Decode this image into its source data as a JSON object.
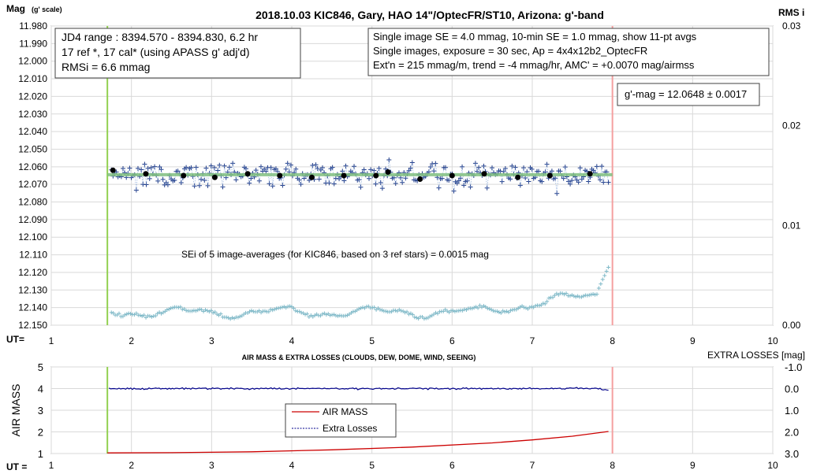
{
  "chart_data": [
    {
      "type": "scatter",
      "title": "2018.10.03  KIC846,  Gary, HAO  14\"/OptecFR/ST10,  Arizona:  g'-band",
      "ylabel": "Mag",
      "ylabel_suffix": "(g' scale)",
      "y2label": "RMS i",
      "xlabel": "UT=",
      "xlim": [
        1,
        10
      ],
      "ylim": [
        11.98,
        12.15
      ],
      "y_inverted": true,
      "y2lim": [
        0.0,
        0.03
      ],
      "x_ticks": [
        "1",
        "2",
        "3",
        "4",
        "5",
        "6",
        "7",
        "8",
        "9",
        "10"
      ],
      "y_ticks": [
        "11.980",
        "11.990",
        "12.000",
        "12.010",
        "12.020",
        "12.030",
        "12.040",
        "12.050",
        "12.060",
        "12.070",
        "12.080",
        "12.090",
        "12.100",
        "12.110",
        "12.120",
        "12.130",
        "12.140",
        "12.150"
      ],
      "y2_ticks": [
        "0.03",
        "0.02",
        "0.01",
        "0.00"
      ],
      "grid": true,
      "vlines": [
        {
          "x": 1.7,
          "color": "#92d050"
        },
        {
          "x": 8.0,
          "color": "#f4a0a0"
        }
      ],
      "annotations": {
        "box1": [
          "JD4 range : 8394.570 - 8394.830, 6.2  hr",
          "17 ref *, 17 cal* (using APASS g' adj'd)",
          "RMSi = 6.6 mmag"
        ],
        "box2": [
          "Single image SE = 4.0 mmag, 10-min SE = 1.0 mmag, show  11-pt avgs",
          "Single images, exposure = 30 sec, Ap = 4x4x12b2_OptecFR",
          "Ext'n = 215 mmag/m, trend =  -4 mmag/hr, AMC' = +0.0070 mag/airmss"
        ],
        "box3": "g'-mag = 12.0648 ± 0.0017",
        "sei_text": "SEi of 5 image-averages (for KIC846, based on 3 ref stars) = 0.0015  mag"
      },
      "fit_line": {
        "x": [
          1.7,
          8.0
        ],
        "y": [
          12.0645,
          12.0645
        ],
        "color": "#7fbf7f"
      },
      "series": [
        {
          "name": "11-pt avgs",
          "color": "#000000",
          "x": [
            1.77,
            2.18,
            2.65,
            3.04,
            3.45,
            3.85,
            4.25,
            4.65,
            5.05,
            5.2,
            5.6,
            6.0,
            6.4,
            6.82,
            7.22,
            7.72
          ],
          "y": [
            12.062,
            12.064,
            12.065,
            12.066,
            12.064,
            12.065,
            12.066,
            12.065,
            12.065,
            12.063,
            12.067,
            12.065,
            12.064,
            12.066,
            12.065,
            12.064
          ]
        }
      ],
      "scatter_description": "dense single-image points (blue +) around 12.065 from UT 1.7 to 7.95; RMS points (light teal +) near RMS 0.001-0.005 on right axis"
    },
    {
      "type": "line",
      "title": "AIR MASS & EXTRA LOSSES (CLOUDS, DEW, DOME, WIND, SEEING)",
      "ylabel": "AIR MASS",
      "y2label": "EXTRA LOSSES [mag]",
      "xlabel": "UT =",
      "xlim": [
        1,
        10
      ],
      "ylim": [
        1,
        5
      ],
      "y2lim": [
        -1.0,
        3.0
      ],
      "y2_inverted": true,
      "x_ticks": [
        "1",
        "2",
        "3",
        "4",
        "5",
        "6",
        "7",
        "8",
        "9",
        "10"
      ],
      "y_ticks": [
        "1",
        "2",
        "3",
        "4",
        "5"
      ],
      "y2_ticks": [
        "-1.0",
        "0.0",
        "1.0",
        "2.0",
        "3.0"
      ],
      "grid": true,
      "vlines": [
        {
          "x": 1.7,
          "color": "#92d050"
        },
        {
          "x": 8.0,
          "color": "#f4a0a0"
        }
      ],
      "legend": {
        "placement": "center",
        "entries": [
          "AIR MASS",
          "Extra Losses"
        ]
      },
      "series": [
        {
          "name": "AIR MASS",
          "color": "#cc0000",
          "x": [
            1.7,
            2.5,
            3.5,
            4.5,
            5.5,
            6.5,
            7.0,
            7.5,
            7.95
          ],
          "y": [
            1.03,
            1.04,
            1.08,
            1.17,
            1.3,
            1.49,
            1.63,
            1.8,
            2.02
          ]
        },
        {
          "name": "Extra Losses",
          "color": "#00008b",
          "x": [
            1.7,
            2.5,
            3.5,
            4.5,
            5.5,
            6.5,
            7.5,
            7.95
          ],
          "y": [
            0.0,
            0.0,
            0.0,
            0.0,
            0.0,
            0.0,
            0.0,
            0.05
          ]
        }
      ]
    }
  ]
}
